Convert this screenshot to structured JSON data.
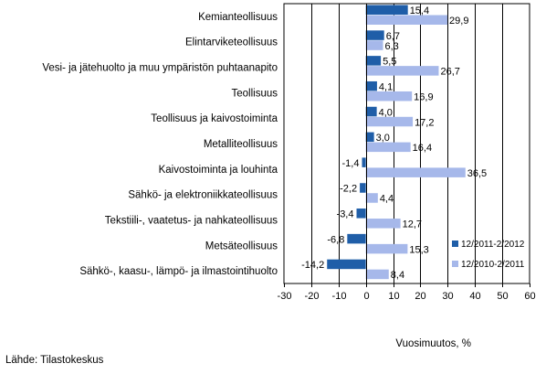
{
  "chart_data": {
    "type": "bar",
    "orientation": "horizontal",
    "categories": [
      "Kemianteollisuus",
      "Elintarviketeollisuus",
      "Vesi- ja jätehuolto ja muu ympäristön puhtaanapito",
      "Teollisuus",
      "Teollisuus ja kaivostoiminta",
      "Metalliteollisuus",
      "Kaivostoiminta ja louhinta",
      "Sähkö- ja elektroniikkateollisuus",
      "Tekstiili-, vaatetus- ja nahkateollisuus",
      "Metsäteollisuus",
      "Sähkö-, kaasu-, lämpö- ja ilmastointihuolto"
    ],
    "series": [
      {
        "name": "12/2011-2/2012",
        "color": "#1f5ea8",
        "values": [
          15.4,
          6.7,
          5.5,
          4.1,
          4.0,
          3.0,
          -1.4,
          -2.2,
          -3.4,
          -6.8,
          -14.2
        ],
        "labels": [
          "15,4",
          "6,7",
          "5,5",
          "4,1",
          "4,0",
          "3,0",
          "-1,4",
          "-2,2",
          "-3,4",
          "-6,8",
          "-14,2"
        ]
      },
      {
        "name": "12/2010-2/2011",
        "color": "#a6b8ea",
        "values": [
          29.9,
          6.3,
          26.7,
          16.9,
          17.2,
          16.4,
          36.5,
          4.4,
          12.7,
          15.3,
          8.4
        ],
        "labels": [
          "29,9",
          "6,3",
          "26,7",
          "16,9",
          "17,2",
          "16,4",
          "36,5",
          "4,4",
          "12,7",
          "15,3",
          "8,4"
        ]
      }
    ],
    "xlim": [
      -30,
      60
    ],
    "ticks": [
      -30,
      -20,
      -10,
      0,
      10,
      20,
      30,
      40,
      50,
      60
    ],
    "xlabel": "Vuosimuutos, %",
    "grid": true,
    "legend_position": "right"
  },
  "source": "Lähde: Tilastokeskus"
}
